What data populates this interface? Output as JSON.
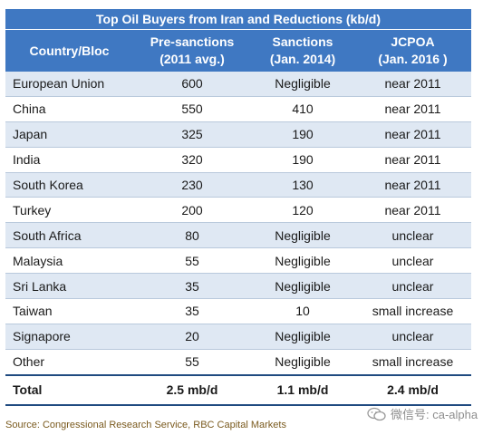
{
  "chart_data": {
    "type": "table",
    "title": "Top Oil Buyers from Iran and Reductions (kb/d)",
    "columns": [
      "Country/Bloc",
      "Pre-sanctions (2011 avg.)",
      "Sanctions (Jan. 2014)",
      "JCPOA (Jan. 2016 )"
    ],
    "header": {
      "c0": "Country/Bloc",
      "c1a": "Pre-sanctions",
      "c1b": "(2011 avg.)",
      "c2a": "Sanctions",
      "c2b": "(Jan. 2014)",
      "c3a": "JCPOA",
      "c3b": "(Jan. 2016 )"
    },
    "rows": [
      [
        "European Union",
        "600",
        "Negligible",
        "near 2011"
      ],
      [
        "China",
        "550",
        "410",
        "near 2011"
      ],
      [
        "Japan",
        "325",
        "190",
        "near 2011"
      ],
      [
        "India",
        "320",
        "190",
        "near 2011"
      ],
      [
        "South Korea",
        "230",
        "130",
        "near 2011"
      ],
      [
        "Turkey",
        "200",
        "120",
        "near 2011"
      ],
      [
        "South Africa",
        "80",
        "Negligible",
        "unclear"
      ],
      [
        "Malaysia",
        "55",
        "Negligible",
        "unclear"
      ],
      [
        "Sri Lanka",
        "35",
        "Negligible",
        "unclear"
      ],
      [
        "Taiwan",
        "35",
        "10",
        "small increase"
      ],
      [
        "Signapore",
        "20",
        "Negligible",
        "unclear"
      ],
      [
        "Other",
        "55",
        "Negligible",
        "small increase"
      ]
    ],
    "total": [
      "Total",
      "2.5 mb/d",
      "1.1 mb/d",
      "2.4 mb/d"
    ],
    "source": "Source: Congressional Research Service, RBC Capital Markets"
  },
  "watermark": "微信号: ca-alpha",
  "colors": {
    "header_bg": "#3f78c2",
    "alt_row_bg": "#dfe8f3",
    "rule": "#1f4a80",
    "source_text": "#7a5a1e"
  }
}
